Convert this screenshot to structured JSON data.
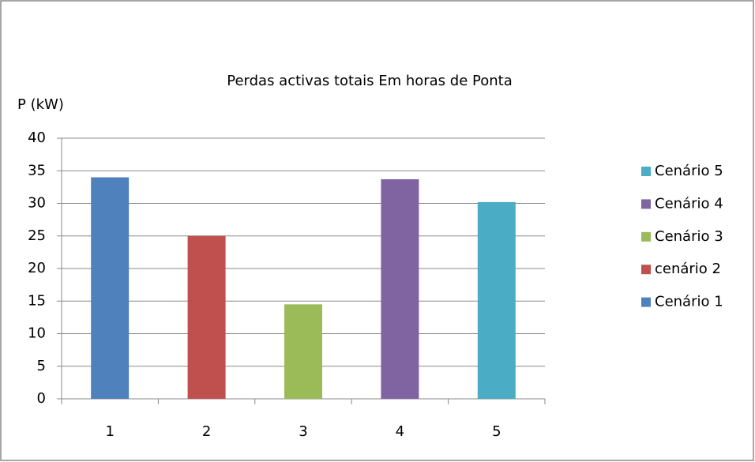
{
  "chart_data": {
    "type": "bar",
    "title": "Perdas activas totais Em horas de Ponta",
    "y_label": "P (kW)",
    "categories": [
      "1",
      "2",
      "3",
      "4",
      "5"
    ],
    "series": [
      {
        "name": "Cenário 1",
        "color": "#4f81bd",
        "values": [
          34,
          null,
          null,
          null,
          null
        ]
      },
      {
        "name": "cenário 2",
        "color": "#c0504d",
        "values": [
          null,
          25,
          null,
          null,
          null
        ]
      },
      {
        "name": "Cenário 3",
        "color": "#9bbb59",
        "values": [
          null,
          null,
          14.5,
          null,
          null
        ]
      },
      {
        "name": "Cenário 4",
        "color": "#8064a2",
        "values": [
          null,
          null,
          null,
          33.7,
          null
        ]
      },
      {
        "name": "Cenário 5",
        "color": "#4bacc6",
        "values": [
          null,
          null,
          null,
          null,
          30.2
        ]
      }
    ],
    "ylim": [
      0,
      40
    ],
    "yticks": [
      0,
      5,
      10,
      15,
      20,
      25,
      30,
      35,
      40
    ],
    "grid": true,
    "legend": "right",
    "legend_order": "reversed"
  }
}
